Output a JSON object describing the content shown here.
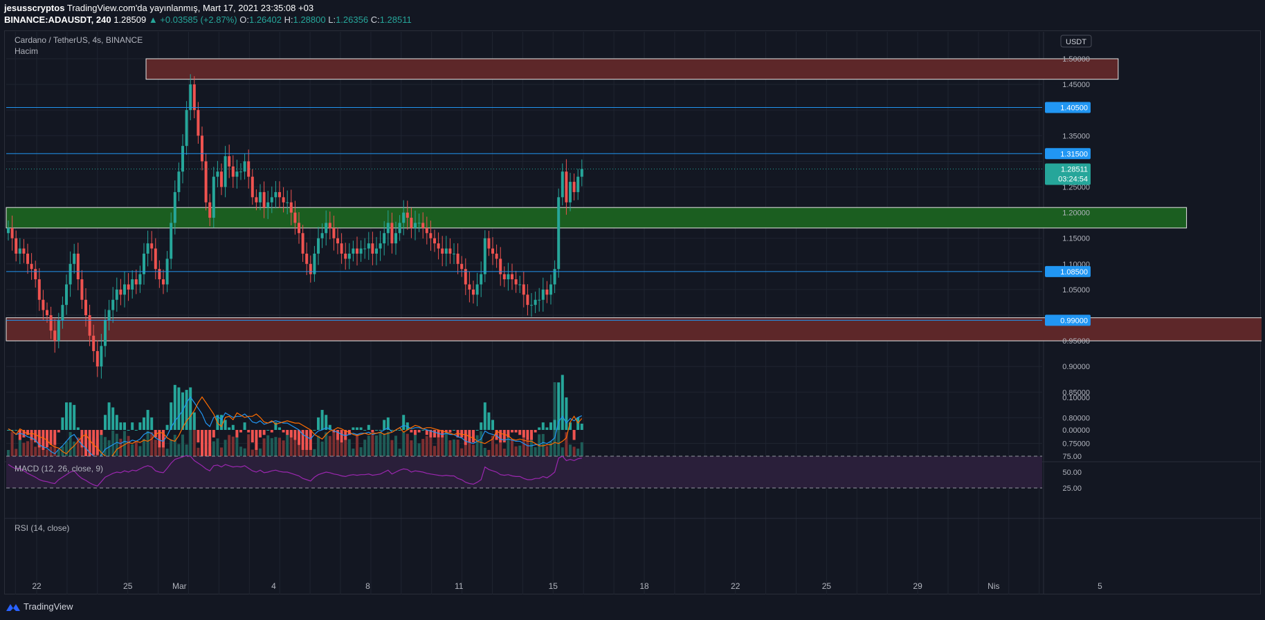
{
  "header": {
    "author": "jesusscryptos",
    "publish_text": "TradingView.com'da yayınlanmış, Mart 17, 2021 23:35:08 +03",
    "symbol": "BINANCE:ADAUSDT, 240",
    "last": "1.28509",
    "change": "▲ +0.03585 (+2.87%)",
    "o_label": "O:",
    "o_value": "1.26402",
    "h_label": "H:",
    "h_value": "1.28800",
    "l_label": "L:",
    "l_value": "1.26356",
    "c_label": "C:",
    "c_value": "1.28511"
  },
  "chart_legend": {
    "title": "Cardano / TetherUS, 4s, BINANCE",
    "volume": "Hacim",
    "macd": "MACD (12, 26, close, 9)",
    "rsi": "RSI (14, close)"
  },
  "axis": {
    "currency": "USDT",
    "price_ticks": [
      "1.50000",
      "1.45000",
      "1.40500",
      "1.35000",
      "1.31500",
      "1.28511",
      "1.25000",
      "1.20000",
      "1.15000",
      "1.10000",
      "1.08500",
      "1.05000",
      "0.99000",
      "0.95000",
      "0.90000",
      "0.85000",
      "0.80000",
      "0.75000"
    ],
    "macd_ticks": [
      "0.10000",
      "0.00000"
    ],
    "rsi_ticks": [
      "75.00",
      "50.00",
      "25.00"
    ],
    "time_ticks": [
      "22",
      "25",
      "Mar",
      "4",
      "8",
      "11",
      "15",
      "18",
      "22",
      "25",
      "29",
      "Nis",
      "5"
    ]
  },
  "price_tags": {
    "l1": "1.40500",
    "l2": "1.31500",
    "last": "1.28511",
    "countdown": "03:24:54",
    "l3": "1.08500",
    "l4": "0.99000"
  },
  "footer": {
    "brand": "TradingView"
  },
  "colors": {
    "bull": "#26a69a",
    "bear": "#ef5350",
    "line": "#2196f3",
    "supply_zone": "#5d2729",
    "demand_zone": "#1b5e20",
    "rsi": "#9c27b0",
    "signal": "#ff6d00"
  },
  "chart_data": {
    "type": "candlestick",
    "ylim": [
      0.73,
      1.53
    ],
    "horizontal_levels": [
      1.405,
      1.315,
      1.085,
      0.99
    ],
    "zones": [
      {
        "kind": "supply",
        "top": 1.5,
        "bottom": 1.46,
        "from": "Feb 26",
        "to": "Mar 28"
      },
      {
        "kind": "demand",
        "top": 1.21,
        "bottom": 1.17,
        "from": "Feb 21",
        "to": "Apr 2"
      },
      {
        "kind": "supply",
        "top": 0.995,
        "bottom": 0.95,
        "from": "Feb 21",
        "to": "Apr 5"
      }
    ],
    "closes": [
      1.17,
      1.15,
      1.12,
      1.13,
      1.12,
      1.1,
      1.09,
      1.07,
      1.03,
      1.01,
      1.0,
      0.97,
      0.95,
      0.99,
      1.02,
      1.06,
      1.1,
      1.12,
      1.07,
      1.03,
      1.0,
      0.96,
      0.93,
      0.9,
      0.94,
      0.99,
      1.01,
      1.03,
      1.05,
      1.04,
      1.06,
      1.05,
      1.07,
      1.06,
      1.08,
      1.12,
      1.14,
      1.13,
      1.09,
      1.07,
      1.06,
      1.11,
      1.18,
      1.24,
      1.28,
      1.33,
      1.4,
      1.45,
      1.4,
      1.35,
      1.3,
      1.22,
      1.19,
      1.27,
      1.28,
      1.25,
      1.31,
      1.29,
      1.27,
      1.28,
      1.28,
      1.3,
      1.27,
      1.23,
      1.22,
      1.24,
      1.21,
      1.22,
      1.23,
      1.24,
      1.23,
      1.22,
      1.22,
      1.2,
      1.18,
      1.16,
      1.12,
      1.1,
      1.08,
      1.12,
      1.15,
      1.16,
      1.18,
      1.17,
      1.15,
      1.14,
      1.12,
      1.11,
      1.12,
      1.13,
      1.12,
      1.13,
      1.13,
      1.14,
      1.12,
      1.13,
      1.14,
      1.16,
      1.18,
      1.14,
      1.16,
      1.18,
      1.2,
      1.19,
      1.17,
      1.18,
      1.18,
      1.17,
      1.16,
      1.15,
      1.14,
      1.13,
      1.12,
      1.13,
      1.12,
      1.12,
      1.1,
      1.09,
      1.06,
      1.05,
      1.04,
      1.06,
      1.08,
      1.15,
      1.13,
      1.12,
      1.11,
      1.08,
      1.07,
      1.08,
      1.07,
      1.06,
      1.06,
      1.04,
      1.02,
      1.02,
      1.03,
      1.03,
      1.05,
      1.04,
      1.06,
      1.09,
      1.23,
      1.28,
      1.22,
      1.26,
      1.24,
      1.27,
      1.285
    ],
    "rsi": [
      62,
      58,
      55,
      56,
      52,
      48,
      45,
      42,
      38,
      36,
      35,
      33,
      32,
      38,
      42,
      46,
      50,
      52,
      45,
      40,
      37,
      33,
      30,
      28,
      35,
      42,
      45,
      48,
      50,
      49,
      52,
      50,
      53,
      52,
      55,
      58,
      60,
      58,
      52,
      50,
      49,
      56,
      64,
      70,
      72,
      74,
      76,
      75,
      68,
      64,
      60,
      55,
      52,
      60,
      61,
      58,
      62,
      60,
      58,
      59,
      58,
      60,
      56,
      52,
      50,
      53,
      49,
      50,
      52,
      53,
      51,
      50,
      50,
      48,
      46,
      44,
      40,
      38,
      36,
      42,
      46,
      48,
      50,
      49,
      47,
      46,
      44,
      43,
      45,
      46,
      45,
      46,
      46,
      47,
      45,
      46,
      47,
      50,
      53,
      47,
      50,
      53,
      55,
      54,
      50,
      52,
      51,
      50,
      48,
      47,
      46,
      45,
      44,
      45,
      44,
      44,
      40,
      38,
      34,
      32,
      31,
      34,
      38,
      58,
      54,
      52,
      50,
      46,
      45,
      46,
      44,
      43,
      43,
      40,
      38,
      38,
      40,
      40,
      43,
      41,
      45,
      50,
      72,
      75,
      68,
      70,
      68,
      71,
      72
    ]
  }
}
